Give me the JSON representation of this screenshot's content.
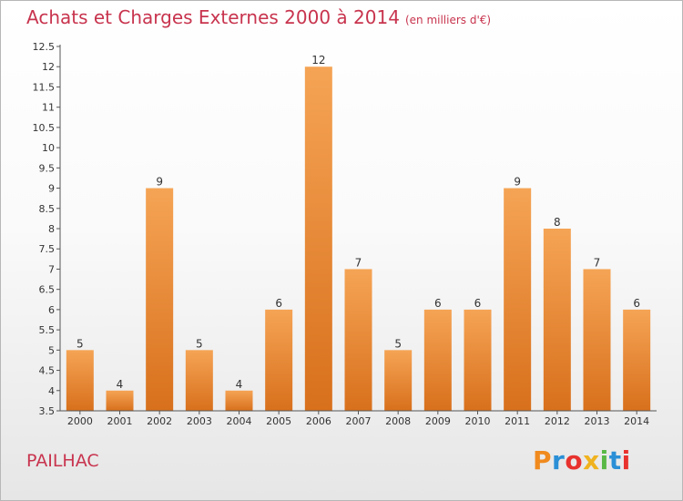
{
  "header": {
    "title": "Achats et Charges Externes 2000 à 2014",
    "unit": "(en milliers d'€)"
  },
  "footer": {
    "city": "PAILHAC",
    "logo_text": "Proxiti",
    "logo_colors": [
      "#f08a1e",
      "#2a8fd6",
      "#e8322e",
      "#f0b21e",
      "#59b846",
      "#2a8fd6",
      "#e8322e"
    ]
  },
  "chart_data": {
    "type": "bar",
    "categories": [
      "2000",
      "2001",
      "2002",
      "2003",
      "2004",
      "2005",
      "2006",
      "2007",
      "2008",
      "2009",
      "2010",
      "2011",
      "2012",
      "2013",
      "2014"
    ],
    "values": [
      5,
      4,
      9,
      5,
      4,
      6,
      12,
      7,
      5,
      6,
      6,
      9,
      8,
      7,
      6
    ],
    "value_labels": [
      "5",
      "4",
      "9",
      "5",
      "4",
      "6",
      "12",
      "7",
      "5",
      "6",
      "6",
      "9",
      "8",
      "7",
      "6"
    ],
    "title": "Achats et Charges Externes 2000 à 2014",
    "xlabel": "",
    "ylabel": "",
    "ylim": [
      3.5,
      12.5
    ],
    "yticks": [
      "3.5",
      "4",
      "4.5",
      "5",
      "5.5",
      "6",
      "6.5",
      "7",
      "7.5",
      "8",
      "8.5",
      "9",
      "9.5",
      "10",
      "10.5",
      "11",
      "11.5",
      "12",
      "12.5"
    ],
    "bar_color_top": "#f5a455",
    "bar_color_bottom": "#d8701c",
    "grid": false,
    "legend": "none"
  }
}
